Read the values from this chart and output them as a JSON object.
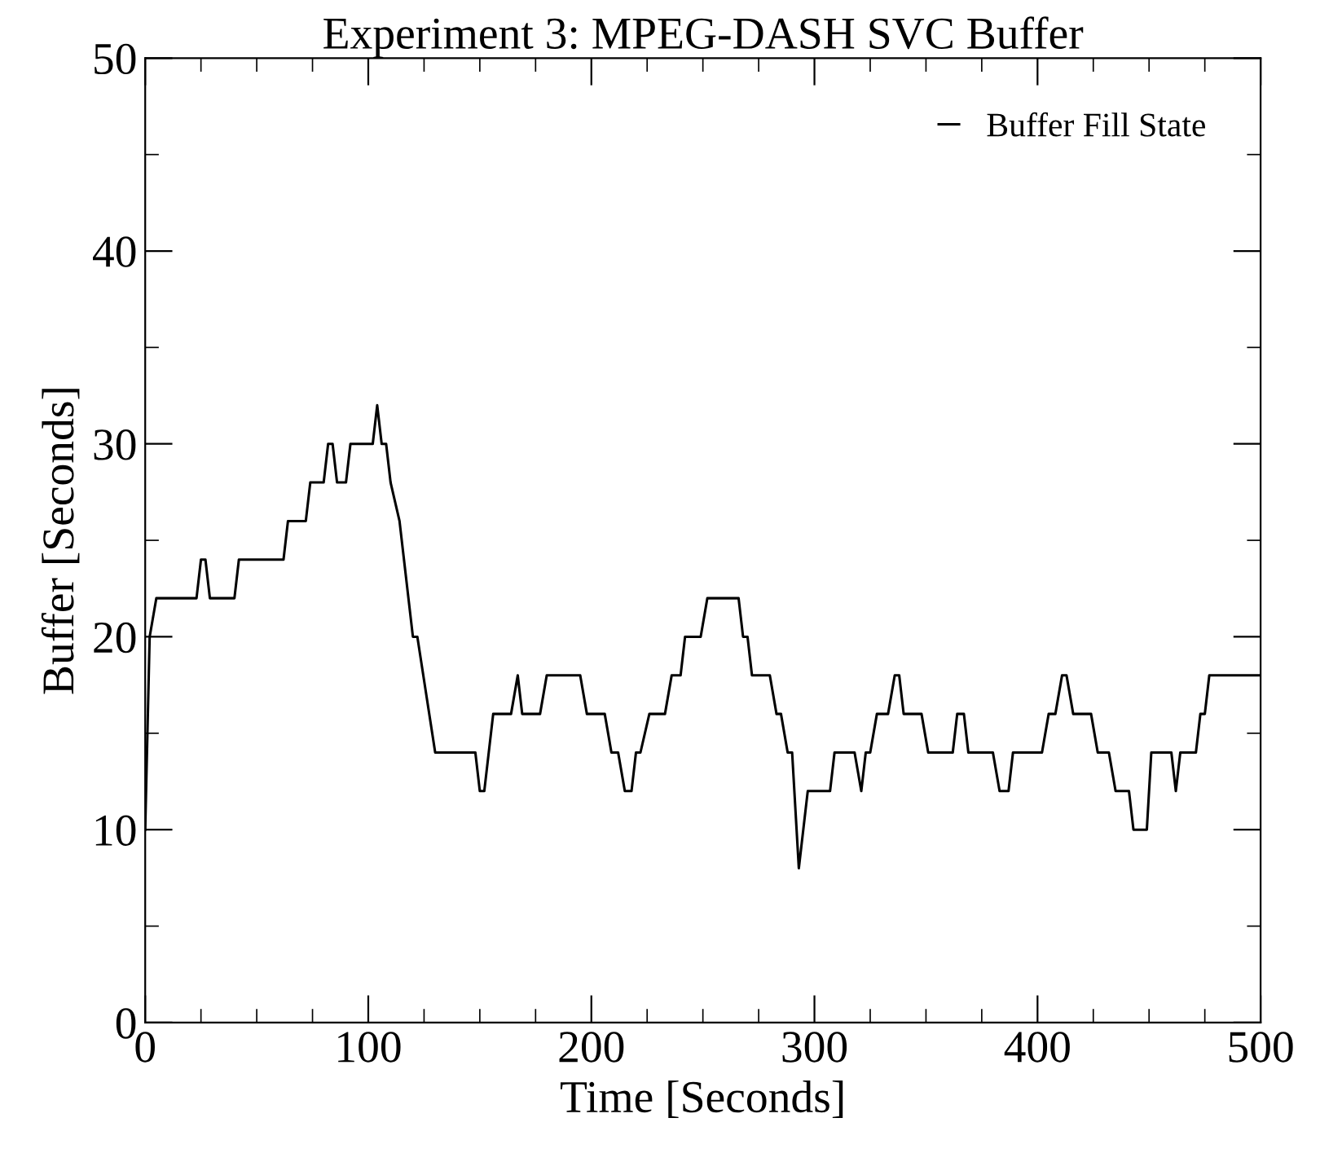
{
  "chart_data": {
    "type": "line",
    "title": "Experiment 3: MPEG-DASH SVC Buffer",
    "xlabel": "Time [Seconds]",
    "ylabel": "Buffer [Seconds]",
    "xlim": [
      0,
      500
    ],
    "xticks": [
      0,
      100,
      200,
      300,
      400,
      500
    ],
    "ylim": [
      0,
      50
    ],
    "yticks": [
      0,
      10,
      20,
      30,
      40,
      50
    ],
    "grid": false,
    "legend": "top right",
    "marker": "none",
    "line_style": "solid",
    "x": [
      0,
      2,
      5,
      23,
      25,
      27,
      29,
      40,
      42,
      62,
      64,
      72,
      74,
      80,
      82,
      84,
      86,
      90,
      92,
      102,
      104,
      106,
      108,
      110,
      114,
      116,
      118,
      120,
      122,
      130,
      148,
      150,
      152,
      156,
      164,
      167,
      169,
      177,
      180,
      195,
      198,
      206,
      209,
      212,
      215,
      218,
      220,
      222,
      226,
      233,
      236,
      240,
      242,
      249,
      252,
      266,
      268,
      270,
      272,
      280,
      283,
      285,
      288,
      290,
      293,
      297,
      307,
      309,
      318,
      321,
      323,
      325,
      328,
      333,
      336,
      338,
      340,
      348,
      351,
      362,
      364,
      367,
      369,
      380,
      383,
      387,
      389,
      402,
      405,
      408,
      411,
      413,
      416,
      424,
      427,
      432,
      435,
      441,
      443,
      449,
      451,
      460,
      462,
      464,
      471,
      473,
      475,
      477,
      500
    ],
    "series": [
      {
        "name": "Buffer Fill State",
        "color": "#000000",
        "values": [
          10,
          20,
          22,
          22,
          24,
          24,
          22,
          22,
          24,
          24,
          26,
          26,
          28,
          28,
          30,
          30,
          28,
          28,
          30,
          30,
          32,
          30,
          30,
          28,
          26,
          24,
          22,
          20,
          20,
          14,
          14,
          12,
          12,
          16,
          16,
          18,
          16,
          16,
          18,
          18,
          16,
          16,
          14,
          14,
          12,
          12,
          14,
          14,
          16,
          16,
          18,
          18,
          20,
          20,
          22,
          22,
          20,
          20,
          18,
          18,
          16,
          16,
          14,
          14,
          8,
          12,
          12,
          14,
          14,
          12,
          14,
          14,
          16,
          16,
          18,
          18,
          16,
          16,
          14,
          14,
          16,
          16,
          14,
          14,
          12,
          12,
          14,
          14,
          16,
          16,
          18,
          18,
          16,
          16,
          14,
          14,
          12,
          12,
          10,
          10,
          14,
          14,
          12,
          14,
          14,
          16,
          16,
          18,
          18
        ]
      }
    ]
  }
}
